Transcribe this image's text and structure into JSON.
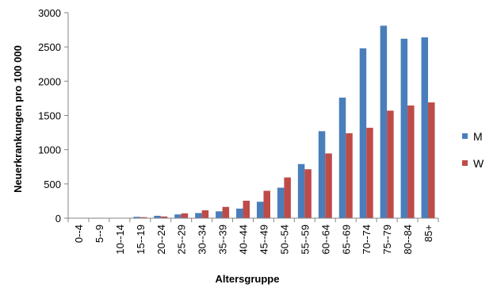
{
  "chart_data": {
    "type": "bar",
    "title": "",
    "xlabel": "Altersgruppe",
    "ylabel": "Neuerkrankungen pro 100 000",
    "ylim": [
      0,
      3000
    ],
    "yticks": [
      0,
      500,
      1000,
      1500,
      2000,
      2500,
      3000
    ],
    "categories": [
      "0--4",
      "5--9",
      "10--14",
      "15--19",
      "20--24",
      "25--29",
      "30--34",
      "35--39",
      "40--44",
      "45--49",
      "50--54",
      "55--59",
      "60--64",
      "65--69",
      "70--74",
      "75--79",
      "80--84",
      "85+"
    ],
    "series": [
      {
        "name": "M",
        "color": "#4a7ebb",
        "values": [
          5,
          3,
          4,
          20,
          35,
          55,
          75,
          100,
          140,
          240,
          445,
          790,
          1270,
          1760,
          2480,
          2810,
          2620,
          2640
        ]
      },
      {
        "name": "W",
        "color": "#be4b48",
        "values": [
          4,
          3,
          4,
          15,
          25,
          70,
          115,
          165,
          255,
          400,
          595,
          715,
          945,
          1240,
          1320,
          1570,
          1645,
          1690
        ]
      }
    ],
    "grid": false,
    "legend": "right"
  }
}
